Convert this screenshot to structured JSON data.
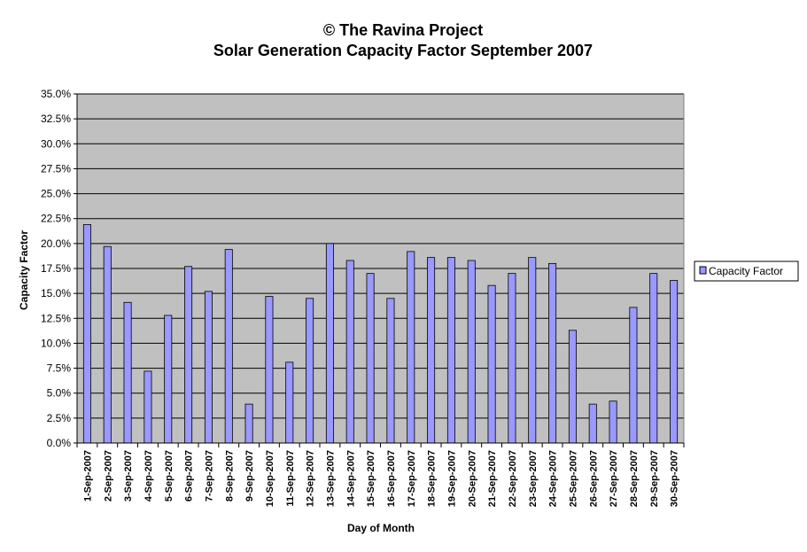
{
  "colors": {
    "plot_bg": "#c0c0c0",
    "bar_fill": "#9999ff",
    "bar_stroke": "#000000",
    "grid": "#000000",
    "page_bg": "#ffffff"
  },
  "chart_data": {
    "type": "bar",
    "title": "© The Ravina Project",
    "subtitle": "Solar Generation Capacity Factor September 2007",
    "xlabel": "Day of Month",
    "ylabel": "Capacity Factor",
    "ylim": [
      0,
      35
    ],
    "y_unit": "%",
    "y_ticks": [
      "0.0%",
      "2.5%",
      "5.0%",
      "7.5%",
      "10.0%",
      "12.5%",
      "15.0%",
      "17.5%",
      "20.0%",
      "22.5%",
      "25.0%",
      "27.5%",
      "30.0%",
      "32.5%",
      "35.0%"
    ],
    "grid": true,
    "legend_position": "right",
    "categories": [
      "1-Sep-2007",
      "2-Sep-2007",
      "3-Sep-2007",
      "4-Sep-2007",
      "5-Sep-2007",
      "6-Sep-2007",
      "7-Sep-2007",
      "8-Sep-2007",
      "9-Sep-2007",
      "10-Sep-2007",
      "11-Sep-2007",
      "12-Sep-2007",
      "13-Sep-2007",
      "14-Sep-2007",
      "15-Sep-2007",
      "16-Sep-2007",
      "17-Sep-2007",
      "18-Sep-2007",
      "19-Sep-2007",
      "20-Sep-2007",
      "21-Sep-2007",
      "22-Sep-2007",
      "23-Sep-2007",
      "24-Sep-2007",
      "25-Sep-2007",
      "26-Sep-2007",
      "27-Sep-2007",
      "28-Sep-2007",
      "29-Sep-2007",
      "30-Sep-2007"
    ],
    "series": [
      {
        "name": "Capacity Factor",
        "values": [
          21.9,
          19.7,
          14.1,
          7.2,
          12.8,
          17.7,
          15.2,
          19.4,
          3.9,
          14.7,
          8.1,
          14.5,
          20.0,
          18.3,
          17.0,
          14.5,
          19.2,
          18.6,
          18.6,
          18.3,
          15.8,
          17.0,
          18.6,
          18.0,
          11.3,
          3.9,
          4.2,
          13.6,
          17.0,
          16.3
        ]
      }
    ]
  }
}
